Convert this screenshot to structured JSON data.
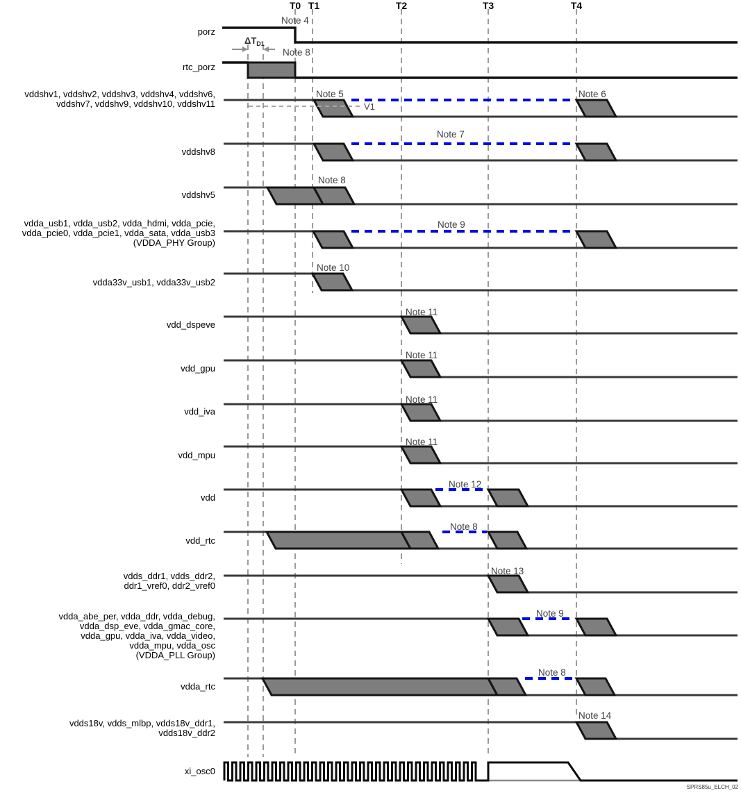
{
  "diagram": {
    "time_markers": [
      "T0",
      "T1",
      "T2",
      "T3",
      "T4"
    ],
    "watermark": "SPRS85u_ELCH_02"
  },
  "annotations": {
    "delta_t": {
      "main": "ΔT",
      "sub": "D1"
    },
    "v1": "V1"
  },
  "signals": [
    {
      "label": "porz"
    },
    {
      "label": "rtc_porz"
    },
    {
      "label": "vddshv1, vddshv2, vddshv3, vddshv4, vddshv6,\nvddshv7, vddshv9, vddshv10, vddshv11"
    },
    {
      "label": "vddshv8"
    },
    {
      "label": "vddshv5"
    },
    {
      "label": "vdda_usb1, vdda_usb2, vdda_hdmi, vdda_pcie,\nvdda_pcie0, vdda_pcie1, vdda_sata, vdda_usb3\n(VDDA_PHY Group)"
    },
    {
      "label": "vdda33v_usb1, vdda33v_usb2"
    },
    {
      "label": "vdd_dspeve"
    },
    {
      "label": "vdd_gpu"
    },
    {
      "label": "vdd_iva"
    },
    {
      "label": "vdd_mpu"
    },
    {
      "label": "vdd"
    },
    {
      "label": "vdd_rtc"
    },
    {
      "label": "vdds_ddr1, vdds_ddr2,\nddr1_vref0, ddr2_vref0"
    },
    {
      "label": "vdda_abe_per, vdda_ddr, vdda_debug,\nvdda_dsp_eve, vdda_gmac_core,\nvdda_gpu, vdda_iva, vdda_video,\nvdda_mpu, vdda_osc\n(VDDA_PLL Group)"
    },
    {
      "label": "vdda_rtc"
    },
    {
      "label": "vdds18v, vdds_mlbp, vdds18v_ddr1,\nvdds18v_ddr2"
    },
    {
      "label": "xi_osc0"
    }
  ],
  "notes": [
    {
      "text": "Note 4"
    },
    {
      "text": "Note 8"
    },
    {
      "text": "Note 5"
    },
    {
      "text": "Note 6"
    },
    {
      "text": "Note 7"
    },
    {
      "text": "Note 8"
    },
    {
      "text": "Note 9"
    },
    {
      "text": "Note 10"
    },
    {
      "text": "Note 11"
    },
    {
      "text": "Note 11"
    },
    {
      "text": "Note 11"
    },
    {
      "text": "Note 11"
    },
    {
      "text": "Note 12"
    },
    {
      "text": "Note 8"
    },
    {
      "text": "Note 13"
    },
    {
      "text": "Note 9"
    },
    {
      "text": "Note 8"
    },
    {
      "text": "Note 14"
    }
  ],
  "colors": {
    "signal_line": "#3a3a3a",
    "reset_line": "#111111",
    "ramp_fill": "#7e7e7e",
    "ramp_stroke": "#151515",
    "grid_dash": "#9b9b9b",
    "optional_blue": "#0008e6",
    "note_text": "#414141"
  }
}
